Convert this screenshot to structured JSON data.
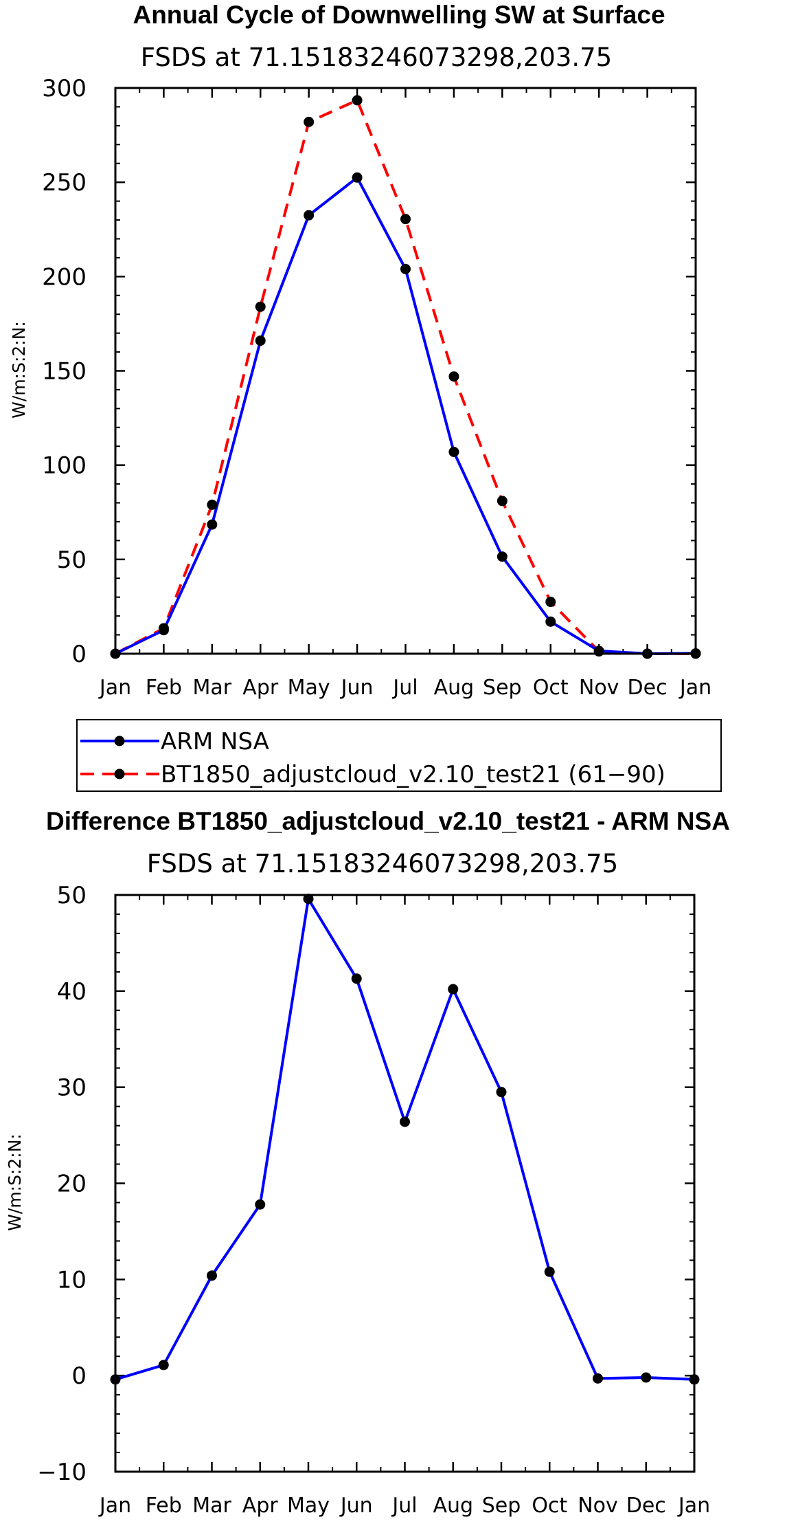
{
  "chart_data": [
    {
      "type": "line",
      "title": "Annual Cycle of Downwelling SW at Surface",
      "subtitle": "FSDS at 71.15183246073298,203.75",
      "ylabel": "W/m:S:2:N:",
      "xlabel": "",
      "categories": [
        "Jan",
        "Feb",
        "Mar",
        "Apr",
        "May",
        "Jun",
        "Jul",
        "Aug",
        "Sep",
        "Oct",
        "Nov",
        "Dec",
        "Jan"
      ],
      "ylim": [
        0,
        300
      ],
      "yticks": [
        0,
        50,
        100,
        150,
        200,
        250,
        300
      ],
      "grid": false,
      "legend_position": "below",
      "series": [
        {
          "name": "ARM NSA",
          "color": "#0000ff",
          "dash": "solid",
          "values": [
            0,
            12.5,
            68.5,
            166,
            232.5,
            252.5,
            204,
            107,
            51.5,
            17,
            1.5,
            0,
            0.2
          ]
        },
        {
          "name": "BT1850_adjustcloud_v2.10_test21 (61−90)",
          "color": "#ff0000",
          "dash": "dashed",
          "values": [
            0,
            13.5,
            79,
            184,
            282,
            293.5,
            230.5,
            147,
            81,
            27.5,
            1.2,
            0,
            0
          ]
        }
      ]
    },
    {
      "type": "line",
      "title": "Difference BT1850_adjustcloud_v2.10_test21 - ARM NSA",
      "subtitle": "FSDS at 71.15183246073298,203.75",
      "ylabel": "W/m:S:2:N:",
      "xlabel": "",
      "categories": [
        "Jan",
        "Feb",
        "Mar",
        "Apr",
        "May",
        "Jun",
        "Jul",
        "Aug",
        "Sep",
        "Oct",
        "Nov",
        "Dec",
        "Jan"
      ],
      "ylim": [
        -10,
        50
      ],
      "yticks": [
        -10,
        0,
        10,
        20,
        30,
        40,
        50
      ],
      "grid": false,
      "series": [
        {
          "color": "#0000ff",
          "dash": "solid",
          "values": [
            -0.4,
            1.1,
            10.4,
            17.8,
            49.6,
            41.3,
            26.4,
            40.2,
            29.5,
            10.8,
            -0.3,
            -0.2,
            -0.4
          ]
        }
      ]
    }
  ]
}
